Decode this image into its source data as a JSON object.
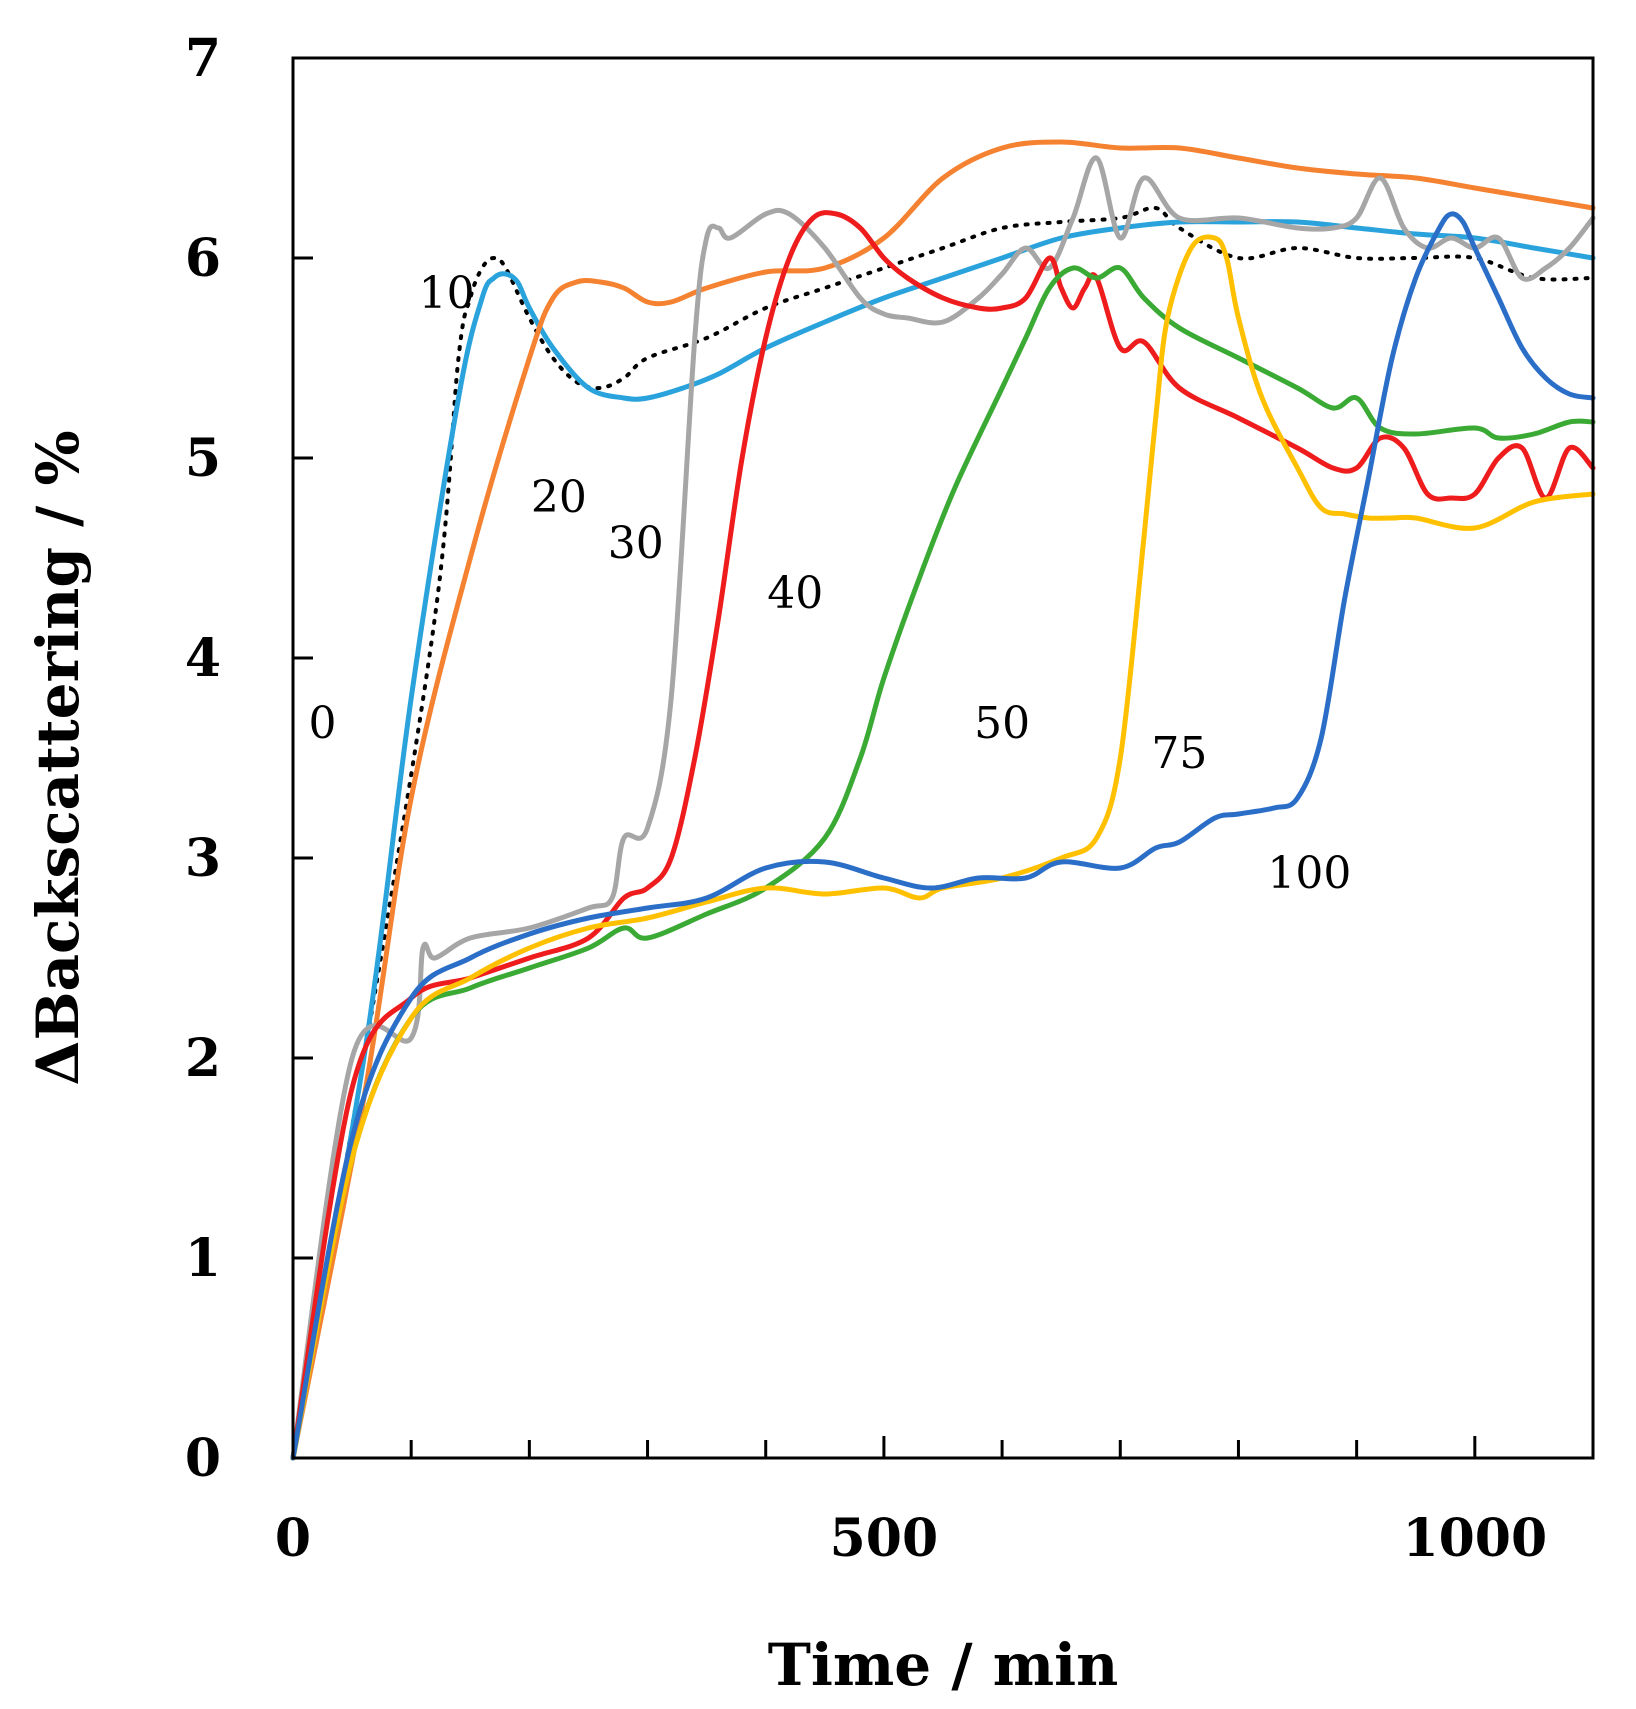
{
  "chart_data": {
    "type": "line",
    "title": "",
    "xlabel": "Time / min",
    "ylabel": "ΔBackscattering  / %",
    "xlim": [
      0,
      1100
    ],
    "ylim": [
      0,
      7
    ],
    "x_ticks": [
      0,
      500,
      1000
    ],
    "x_minor_ticks": [
      100,
      200,
      300,
      400,
      600,
      700,
      800,
      900
    ],
    "y_ticks": [
      0,
      1,
      2,
      3,
      4,
      5,
      6,
      7
    ],
    "grid": false,
    "legend": "inline labels",
    "series": [
      {
        "name": "0",
        "color": "#000000",
        "style": "dotted",
        "x": [
          0,
          60,
          120,
          140,
          150,
          160,
          170,
          180,
          200,
          220,
          240,
          260,
          280,
          300,
          350,
          400,
          450,
          500,
          550,
          600,
          650,
          700,
          730,
          750,
          800,
          850,
          900,
          950,
          1000,
          1050,
          1100
        ],
        "y": [
          0,
          2.0,
          4.2,
          5.5,
          5.8,
          5.95,
          6.0,
          5.95,
          5.7,
          5.5,
          5.38,
          5.35,
          5.4,
          5.5,
          5.6,
          5.75,
          5.85,
          5.95,
          6.05,
          6.15,
          6.18,
          6.2,
          6.25,
          6.15,
          6.0,
          6.05,
          6.0,
          6.0,
          6.0,
          5.9,
          5.9
        ]
      },
      {
        "name": "10",
        "color": "#2aa3dc",
        "style": "solid",
        "x": [
          0,
          60,
          100,
          140,
          160,
          170,
          180,
          190,
          200,
          220,
          250,
          280,
          300,
          330,
          360,
          400,
          450,
          500,
          550,
          600,
          650,
          700,
          750,
          800,
          850,
          900,
          950,
          1000,
          1050,
          1100
        ],
        "y": [
          0,
          2.0,
          3.8,
          5.3,
          5.8,
          5.9,
          5.92,
          5.88,
          5.75,
          5.55,
          5.35,
          5.3,
          5.3,
          5.35,
          5.42,
          5.55,
          5.68,
          5.8,
          5.9,
          6.0,
          6.1,
          6.15,
          6.18,
          6.18,
          6.18,
          6.15,
          6.12,
          6.1,
          6.05,
          6.0
        ]
      },
      {
        "name": "20",
        "color": "#f58231",
        "style": "solid",
        "x": [
          0,
          60,
          100,
          150,
          200,
          220,
          240,
          260,
          280,
          300,
          320,
          350,
          400,
          450,
          500,
          550,
          600,
          650,
          700,
          750,
          800,
          850,
          900,
          950,
          1000,
          1050,
          1100
        ],
        "y": [
          0,
          1.8,
          3.3,
          4.5,
          5.5,
          5.8,
          5.88,
          5.88,
          5.85,
          5.78,
          5.78,
          5.85,
          5.93,
          5.95,
          6.1,
          6.4,
          6.55,
          6.58,
          6.55,
          6.55,
          6.5,
          6.45,
          6.42,
          6.4,
          6.35,
          6.3,
          6.25
        ]
      },
      {
        "name": "30",
        "color": "#a6a6a6",
        "style": "solid",
        "x": [
          0,
          50,
          100,
          110,
          120,
          150,
          200,
          250,
          270,
          280,
          300,
          320,
          340,
          350,
          360,
          370,
          400,
          420,
          450,
          480,
          500,
          520,
          550,
          580,
          600,
          620,
          640,
          660,
          680,
          700,
          720,
          750,
          800,
          850,
          880,
          900,
          920,
          940,
          960,
          980,
          1000,
          1020,
          1040,
          1060,
          1080,
          1100
        ],
        "y": [
          0,
          2.0,
          2.1,
          2.55,
          2.5,
          2.6,
          2.65,
          2.75,
          2.8,
          3.1,
          3.15,
          3.8,
          5.6,
          6.1,
          6.15,
          6.1,
          6.22,
          6.22,
          6.05,
          5.8,
          5.72,
          5.7,
          5.68,
          5.8,
          5.92,
          6.05,
          5.95,
          6.2,
          6.5,
          6.1,
          6.4,
          6.2,
          6.2,
          6.15,
          6.15,
          6.2,
          6.4,
          6.15,
          6.05,
          6.1,
          6.05,
          6.1,
          5.9,
          5.95,
          6.05,
          6.2
        ]
      },
      {
        "name": "40",
        "color": "#ee1c1c",
        "style": "solid",
        "x": [
          0,
          50,
          100,
          150,
          200,
          250,
          280,
          300,
          320,
          340,
          360,
          380,
          400,
          420,
          440,
          460,
          480,
          500,
          520,
          550,
          580,
          600,
          620,
          640,
          650,
          660,
          670,
          680,
          700,
          720,
          750,
          800,
          850,
          880,
          900,
          920,
          940,
          960,
          980,
          1000,
          1020,
          1040,
          1060,
          1080,
          1100
        ],
        "y": [
          0,
          1.85,
          2.3,
          2.4,
          2.5,
          2.6,
          2.8,
          2.85,
          3.0,
          3.5,
          4.2,
          5.0,
          5.6,
          6.0,
          6.2,
          6.22,
          6.15,
          6.0,
          5.9,
          5.8,
          5.75,
          5.75,
          5.8,
          6.0,
          5.85,
          5.75,
          5.85,
          5.9,
          5.55,
          5.58,
          5.35,
          5.2,
          5.05,
          4.95,
          4.95,
          5.1,
          5.05,
          4.82,
          4.8,
          4.82,
          5.0,
          5.05,
          4.8,
          5.05,
          4.95
        ]
      },
      {
        "name": "50",
        "color": "#3aaa35",
        "style": "solid",
        "x": [
          0,
          50,
          100,
          150,
          200,
          250,
          280,
          300,
          350,
          400,
          450,
          480,
          500,
          530,
          560,
          600,
          620,
          640,
          660,
          680,
          700,
          720,
          750,
          800,
          850,
          880,
          900,
          920,
          950,
          1000,
          1020,
          1050,
          1080,
          1100
        ],
        "y": [
          0,
          1.5,
          2.2,
          2.35,
          2.45,
          2.55,
          2.65,
          2.6,
          2.72,
          2.85,
          3.1,
          3.5,
          3.9,
          4.4,
          4.85,
          5.35,
          5.6,
          5.85,
          5.95,
          5.9,
          5.95,
          5.8,
          5.65,
          5.5,
          5.35,
          5.25,
          5.3,
          5.15,
          5.12,
          5.15,
          5.1,
          5.12,
          5.18,
          5.18
        ]
      },
      {
        "name": "75",
        "color": "#ffc000",
        "style": "solid",
        "x": [
          0,
          50,
          100,
          150,
          200,
          250,
          300,
          350,
          400,
          450,
          500,
          530,
          550,
          600,
          650,
          680,
          700,
          720,
          730,
          740,
          760,
          780,
          790,
          800,
          820,
          850,
          870,
          890,
          910,
          930,
          950,
          1000,
          1050,
          1100
        ],
        "y": [
          0,
          1.5,
          2.2,
          2.4,
          2.55,
          2.65,
          2.7,
          2.78,
          2.85,
          2.82,
          2.85,
          2.8,
          2.85,
          2.9,
          3.0,
          3.1,
          3.5,
          4.6,
          5.2,
          5.7,
          6.05,
          6.1,
          6.0,
          5.7,
          5.3,
          4.95,
          4.75,
          4.72,
          4.7,
          4.7,
          4.7,
          4.65,
          4.78,
          4.82
        ]
      },
      {
        "name": "100",
        "color": "#2b6ec8",
        "style": "solid",
        "x": [
          0,
          50,
          100,
          150,
          200,
          250,
          300,
          350,
          400,
          450,
          500,
          540,
          580,
          620,
          650,
          700,
          730,
          750,
          780,
          800,
          830,
          850,
          870,
          890,
          910,
          930,
          950,
          970,
          980,
          990,
          1000,
          1020,
          1040,
          1060,
          1080,
          1100
        ],
        "y": [
          0,
          1.6,
          2.3,
          2.5,
          2.62,
          2.7,
          2.75,
          2.8,
          2.95,
          2.98,
          2.9,
          2.85,
          2.9,
          2.9,
          2.98,
          2.95,
          3.05,
          3.08,
          3.2,
          3.22,
          3.25,
          3.3,
          3.6,
          4.3,
          4.9,
          5.5,
          5.9,
          6.15,
          6.22,
          6.18,
          6.05,
          5.8,
          5.55,
          5.4,
          5.32,
          5.3
        ]
      }
    ],
    "series_labels": [
      {
        "text": "0",
        "x": 25,
        "y": 3.6
      },
      {
        "text": "10",
        "x": 130,
        "y": 5.75
      },
      {
        "text": "20",
        "x": 225,
        "y": 4.73
      },
      {
        "text": "30",
        "x": 290,
        "y": 4.5
      },
      {
        "text": "40",
        "x": 425,
        "y": 4.25
      },
      {
        "text": "50",
        "x": 600,
        "y": 3.6
      },
      {
        "text": "75",
        "x": 750,
        "y": 3.45
      },
      {
        "text": "100",
        "x": 860,
        "y": 2.85
      }
    ]
  }
}
